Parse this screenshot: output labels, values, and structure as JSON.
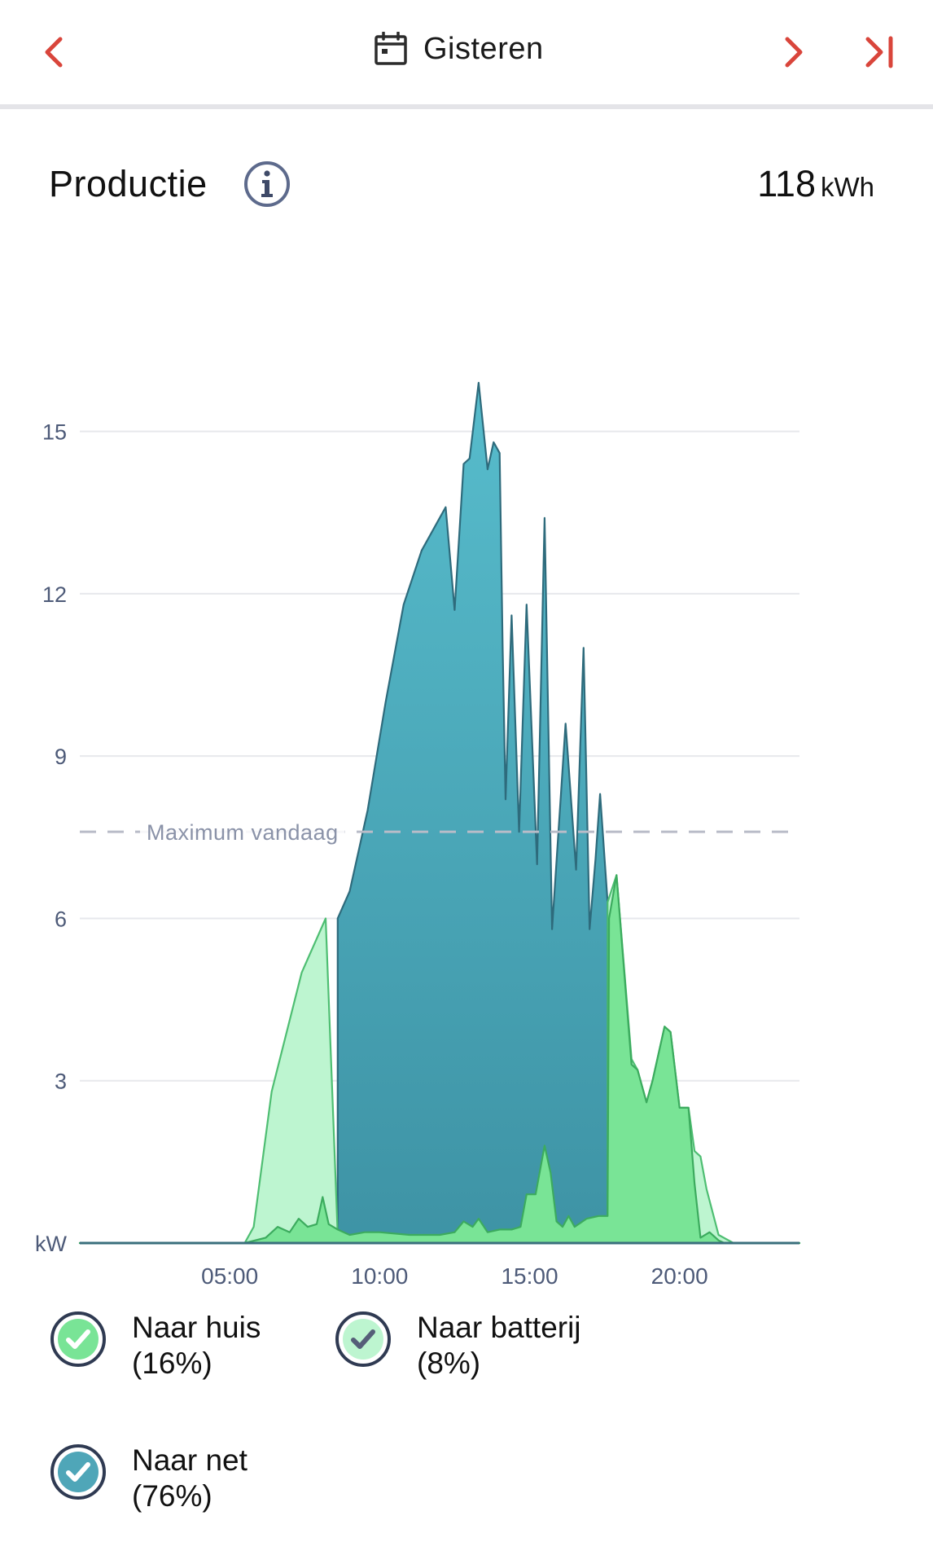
{
  "header": {
    "date_label": "Gisteren",
    "icons": {
      "prev": "chevron-left-icon",
      "calendar": "calendar-icon",
      "next": "chevron-right-icon",
      "last": "skip-to-end-icon"
    },
    "accent_color": "#d9453b"
  },
  "summary": {
    "title": "Productie",
    "total_value": "118",
    "total_unit": "kWh",
    "info_icon": "info-icon"
  },
  "legend": [
    {
      "label": "Naar huis",
      "pct": "(16%)",
      "fill": "#79e496",
      "ring": "#2f3a52",
      "check_color": "#ffffff"
    },
    {
      "label": "Naar batterij",
      "pct": "(8%)",
      "fill": "#bdf5d0",
      "ring": "#2f3a52",
      "check_color": "#555e78"
    },
    {
      "label": "Naar net",
      "pct": "(76%)",
      "fill": "#4fa6b8",
      "ring": "#2f3a52",
      "check_color": "#ffffff"
    }
  ],
  "chart_data": {
    "type": "area",
    "xlabel": "",
    "ylabel": "kW",
    "xlim": [
      0,
      24
    ],
    "ylim": [
      0,
      16.5
    ],
    "yticks": [
      15,
      12,
      9,
      6,
      3
    ],
    "xticks": [
      {
        "x": 5,
        "label": "05:00"
      },
      {
        "x": 10,
        "label": "10:00"
      },
      {
        "x": 15,
        "label": "15:00"
      },
      {
        "x": 20,
        "label": "20:00"
      }
    ],
    "grid": true,
    "reference_line": {
      "label": "Maximum vandaag",
      "y": 7.6
    },
    "colors": {
      "net_top": "#57bccc",
      "net_bottom": "#3e93a5",
      "net_stroke": "#2e6b7c",
      "batterij": "#bdf5d0",
      "batterij_stroke": "#4ebe72",
      "huis": "#79e496",
      "huis_stroke": "#3cab5e",
      "grid": "#e7e8ec",
      "tick": "#4d5a78"
    },
    "series": [
      {
        "name": "Naar net",
        "points": [
          [
            0,
            0
          ],
          [
            8.6,
            0
          ],
          [
            8.6,
            6.0
          ],
          [
            9,
            6.5
          ],
          [
            9.6,
            8.0
          ],
          [
            10.2,
            10.0
          ],
          [
            10.8,
            11.8
          ],
          [
            11.4,
            12.8
          ],
          [
            12.2,
            13.6
          ],
          [
            12.5,
            11.7
          ],
          [
            12.8,
            14.4
          ],
          [
            13,
            14.5
          ],
          [
            13.3,
            15.9
          ],
          [
            13.6,
            14.3
          ],
          [
            13.8,
            14.8
          ],
          [
            14,
            14.6
          ],
          [
            14.1,
            11.0
          ],
          [
            14.2,
            8.2
          ],
          [
            14.4,
            11.6
          ],
          [
            14.65,
            7.6
          ],
          [
            14.9,
            11.8
          ],
          [
            15.25,
            7.0
          ],
          [
            15.5,
            13.4
          ],
          [
            15.75,
            5.8
          ],
          [
            16.2,
            9.6
          ],
          [
            16.55,
            6.9
          ],
          [
            16.8,
            11.0
          ],
          [
            17.0,
            5.8
          ],
          [
            17.2,
            7.1
          ],
          [
            17.35,
            8.3
          ],
          [
            17.6,
            6.3
          ],
          [
            17.6,
            0
          ],
          [
            24,
            0
          ]
        ]
      },
      {
        "name": "Naar batterij",
        "points": [
          [
            0,
            0
          ],
          [
            5.5,
            0
          ],
          [
            5.8,
            0.3
          ],
          [
            6.4,
            2.8
          ],
          [
            7.4,
            5.0
          ],
          [
            8.2,
            6.0
          ],
          [
            8.6,
            0.15
          ],
          [
            17.6,
            0.15
          ],
          [
            17.6,
            6.3
          ],
          [
            17.9,
            6.8
          ],
          [
            18.4,
            3.4
          ],
          [
            18.6,
            3.2
          ],
          [
            18.9,
            2.6
          ],
          [
            19.1,
            3.0
          ],
          [
            19.5,
            4.0
          ],
          [
            19.7,
            3.9
          ],
          [
            20,
            2.5
          ],
          [
            20.3,
            2.5
          ],
          [
            20.5,
            1.7
          ],
          [
            20.7,
            1.6
          ],
          [
            20.9,
            1.0
          ],
          [
            21.3,
            0.15
          ],
          [
            21.8,
            0
          ],
          [
            24,
            0
          ]
        ]
      },
      {
        "name": "Naar huis",
        "points": [
          [
            0,
            0
          ],
          [
            5.5,
            0
          ],
          [
            6.2,
            0.1
          ],
          [
            6.6,
            0.3
          ],
          [
            7.0,
            0.2
          ],
          [
            7.3,
            0.45
          ],
          [
            7.6,
            0.3
          ],
          [
            7.9,
            0.35
          ],
          [
            8.1,
            0.85
          ],
          [
            8.3,
            0.35
          ],
          [
            8.6,
            0.25
          ],
          [
            9.0,
            0.15
          ],
          [
            9.5,
            0.2
          ],
          [
            10.0,
            0.2
          ],
          [
            11.0,
            0.15
          ],
          [
            12.0,
            0.15
          ],
          [
            12.5,
            0.2
          ],
          [
            12.8,
            0.4
          ],
          [
            13.1,
            0.3
          ],
          [
            13.3,
            0.45
          ],
          [
            13.6,
            0.2
          ],
          [
            14.0,
            0.25
          ],
          [
            14.4,
            0.25
          ],
          [
            14.7,
            0.3
          ],
          [
            14.9,
            0.9
          ],
          [
            15.2,
            0.9
          ],
          [
            15.5,
            1.8
          ],
          [
            15.7,
            1.3
          ],
          [
            15.9,
            0.4
          ],
          [
            16.1,
            0.3
          ],
          [
            16.3,
            0.5
          ],
          [
            16.5,
            0.3
          ],
          [
            16.9,
            0.45
          ],
          [
            17.3,
            0.5
          ],
          [
            17.6,
            0.5
          ],
          [
            17.65,
            6.0
          ],
          [
            17.9,
            6.8
          ],
          [
            18.4,
            3.3
          ],
          [
            18.6,
            3.2
          ],
          [
            18.9,
            2.6
          ],
          [
            19.1,
            3.0
          ],
          [
            19.5,
            4.0
          ],
          [
            19.7,
            3.9
          ],
          [
            20.0,
            2.5
          ],
          [
            20.3,
            2.5
          ],
          [
            20.5,
            1.1
          ],
          [
            20.7,
            0.1
          ],
          [
            21.0,
            0.2
          ],
          [
            21.3,
            0.05
          ],
          [
            21.5,
            0
          ],
          [
            24,
            0
          ]
        ]
      }
    ]
  }
}
